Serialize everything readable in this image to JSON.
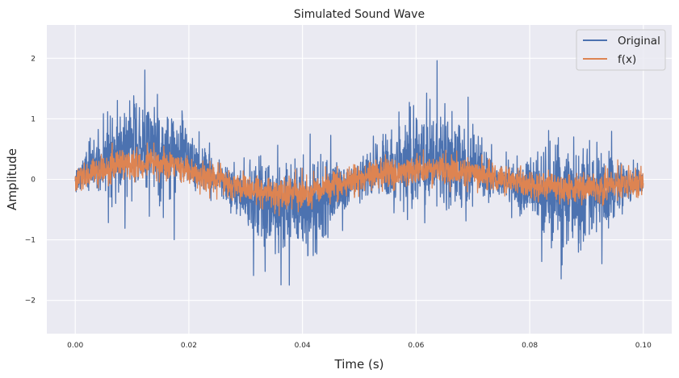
{
  "chart_data": {
    "type": "line",
    "title": "Simulated Sound Wave",
    "xlabel": "Time (s)",
    "ylabel": "Amplitude",
    "xlim": [
      -0.005,
      0.105
    ],
    "ylim": [
      -2.55,
      2.55
    ],
    "x_ticks": [
      0.0,
      0.02,
      0.04,
      0.06,
      0.08,
      0.1
    ],
    "x_tick_labels": [
      "0.00",
      "0.02",
      "0.04",
      "0.06",
      "0.08",
      "0.10"
    ],
    "y_ticks": [
      -2,
      -1,
      0,
      1,
      2
    ],
    "y_tick_labels": [
      "−2",
      "−1",
      "0",
      "1",
      "2"
    ],
    "grid": true,
    "legend_position": "top-right",
    "x_range": [
      0.0,
      0.1
    ],
    "approximate_peaks": {
      "original_max": 2.33,
      "original_min": -2.3,
      "fx_max": 0.6,
      "fx_min": -0.6
    },
    "series": [
      {
        "name": "Original",
        "color": "#4c72b0",
        "description_points": [
          {
            "x": 0.0,
            "y": 0.0
          },
          {
            "x": 0.0125,
            "y": 0.5
          },
          {
            "x": 0.025,
            "y": 0.0
          },
          {
            "x": 0.0375,
            "y": -0.5
          },
          {
            "x": 0.05,
            "y": 0.0
          },
          {
            "x": 0.0625,
            "y": 0.5
          },
          {
            "x": 0.075,
            "y": 0.0
          },
          {
            "x": 0.0875,
            "y": -0.3
          },
          {
            "x": 0.1,
            "y": 0.0
          }
        ]
      },
      {
        "name": "f(x)",
        "color": "#dd8452",
        "description_points": [
          {
            "x": 0.0,
            "y": 0.0
          },
          {
            "x": 0.0125,
            "y": 0.2
          },
          {
            "x": 0.025,
            "y": 0.0
          },
          {
            "x": 0.0375,
            "y": -0.3
          },
          {
            "x": 0.05,
            "y": 0.0
          },
          {
            "x": 0.0625,
            "y": 0.35
          },
          {
            "x": 0.075,
            "y": 0.0
          },
          {
            "x": 0.0875,
            "y": -0.1
          },
          {
            "x": 0.1,
            "y": 0.0
          }
        ]
      }
    ]
  }
}
